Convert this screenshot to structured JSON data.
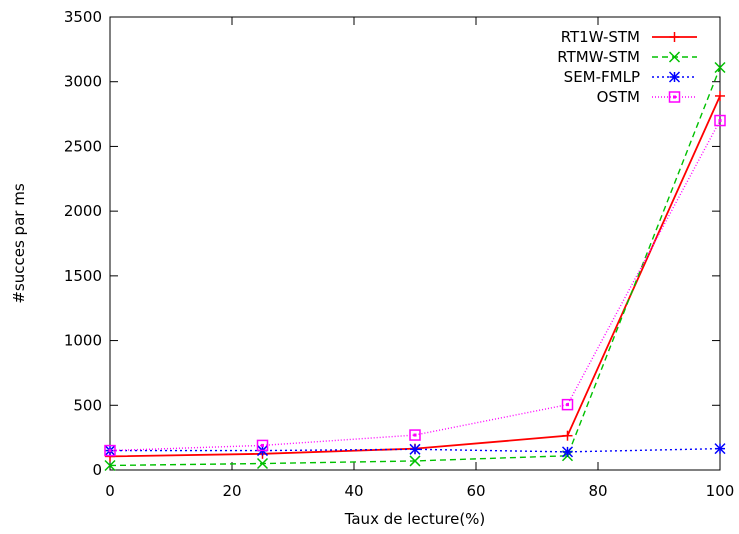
{
  "chart_data": {
    "type": "line",
    "title": "",
    "xlabel": "Taux de lecture(%)",
    "ylabel": "#succes par ms",
    "xlim": [
      0,
      100
    ],
    "ylim": [
      0,
      3500
    ],
    "xticks": [
      0,
      20,
      40,
      60,
      80,
      100
    ],
    "yticks": [
      0,
      500,
      1000,
      1500,
      2000,
      2500,
      3000,
      3500
    ],
    "grid": false,
    "legend_position": "top-right",
    "series": [
      {
        "name": "RT1W-STM",
        "color": "#ff0000",
        "dash": "solid",
        "marker": "plus",
        "x": [
          0,
          25,
          50,
          75,
          100
        ],
        "y": [
          105,
          125,
          165,
          265,
          2890
        ]
      },
      {
        "name": "RTMW-STM",
        "color": "#00c000",
        "dash": "dashed",
        "marker": "cross",
        "x": [
          0,
          25,
          50,
          75,
          100
        ],
        "y": [
          35,
          50,
          70,
          110,
          3110
        ]
      },
      {
        "name": "SEM-FMLP",
        "color": "#0000ff",
        "dash": "dotted",
        "marker": "asterisk",
        "x": [
          0,
          25,
          50,
          75,
          100
        ],
        "y": [
          150,
          150,
          160,
          140,
          165
        ]
      },
      {
        "name": "OSTM",
        "color": "#ff00ff",
        "dash": "finedot",
        "marker": "square",
        "x": [
          0,
          25,
          50,
          75,
          100
        ],
        "y": [
          150,
          190,
          270,
          505,
          2700
        ]
      }
    ]
  }
}
